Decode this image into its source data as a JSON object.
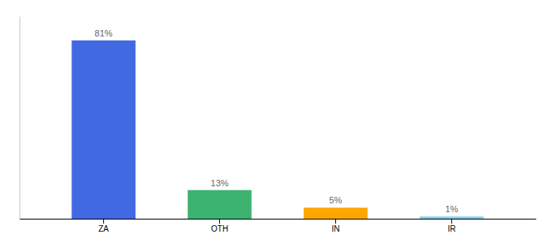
{
  "chart_data": {
    "type": "bar",
    "categories": [
      "ZA",
      "OTH",
      "IN",
      "IR"
    ],
    "values": [
      81,
      13,
      5,
      1
    ],
    "value_labels": [
      "81%",
      "13%",
      "5%",
      "1%"
    ],
    "colors": [
      "#4169E1",
      "#3CB371",
      "#FFA500",
      "#87CEEB"
    ],
    "ylim": [
      0,
      92
    ],
    "data_labels": true,
    "tick_labels": "x"
  }
}
